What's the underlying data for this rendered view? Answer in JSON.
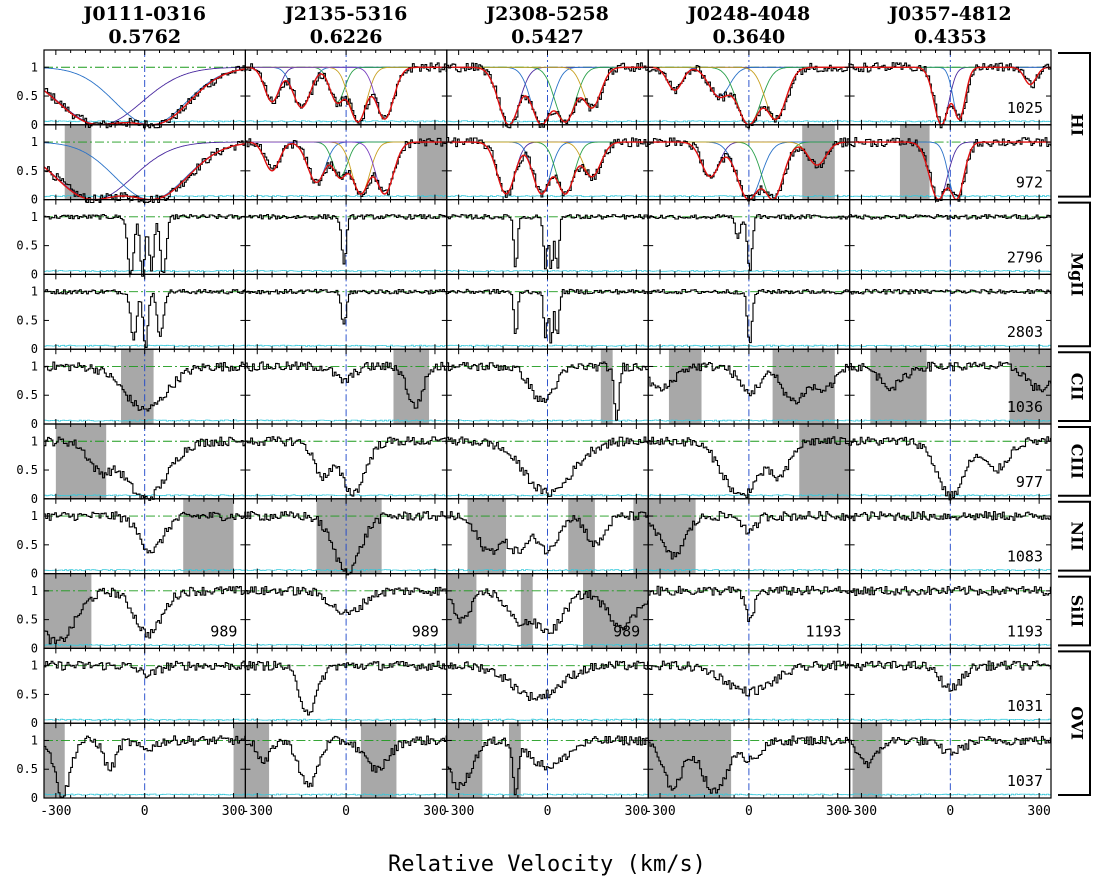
{
  "figure": {
    "xlabel": "Relative Velocity (km/s)"
  },
  "colors": {
    "data": "#000000",
    "error": "#33c8dc",
    "fit": "#e01010",
    "continuum": "#1a9a1a",
    "zero_line": "#e01010",
    "center_line": "#1a44c8",
    "mask": "#a8a8a8",
    "components": [
      "#4b2ba0",
      "#2a72c8",
      "#2aa04b",
      "#c8a020",
      "#7a40c0"
    ]
  },
  "chart_data": {
    "type": "line",
    "xlim": [
      -340,
      340
    ],
    "ylim": [
      0,
      1.3
    ],
    "xticks": [
      "-300",
      "0",
      "300"
    ],
    "yticks": [
      "0",
      "0.5",
      "1"
    ],
    "columns": [
      {
        "sightline": "J0111-0316",
        "redshift": "0.5762"
      },
      {
        "sightline": "J2135-5316",
        "redshift": "0.6226"
      },
      {
        "sightline": "J2308-5258",
        "redshift": "0.5427"
      },
      {
        "sightline": "J0248-4048",
        "redshift": "0.3640"
      },
      {
        "sightline": "J0357-4812",
        "redshift": "0.4353"
      }
    ],
    "ions": [
      {
        "ion": "HI",
        "rows": [
          0,
          1
        ]
      },
      {
        "ion": "MgII",
        "rows": [
          2,
          3
        ]
      },
      {
        "ion": "CII",
        "rows": [
          4
        ]
      },
      {
        "ion": "CIII",
        "rows": [
          5
        ]
      },
      {
        "ion": "NII",
        "rows": [
          6
        ]
      },
      {
        "ion": "SiII",
        "rows": [
          7
        ]
      },
      {
        "ion": "OVI",
        "rows": [
          8,
          9
        ]
      }
    ],
    "rows": [
      {
        "labels": [
          "",
          "",
          "",
          "",
          "1025"
        ]
      },
      {
        "labels": [
          "",
          "",
          "",
          "",
          "972"
        ]
      },
      {
        "labels": [
          "",
          "",
          "",
          "",
          "2796"
        ]
      },
      {
        "labels": [
          "",
          "",
          "",
          "",
          "2803"
        ]
      },
      {
        "labels": [
          "",
          "",
          "",
          "",
          "1036"
        ]
      },
      {
        "labels": [
          "",
          "",
          "",
          "",
          "977"
        ]
      },
      {
        "labels": [
          "",
          "",
          "",
          "",
          "1083"
        ]
      },
      {
        "labels": [
          "989",
          "989",
          "989",
          "1193",
          "1193"
        ]
      },
      {
        "labels": [
          "",
          "",
          "",
          "",
          "1031"
        ]
      },
      {
        "labels": [
          "",
          "",
          "",
          "",
          "1037"
        ]
      }
    ],
    "masks": [
      [
        [],
        [
          [
            -270,
            -180
          ]
        ],
        [],
        [],
        [
          [
            -80,
            30
          ]
        ],
        [
          [
            -300,
            -130
          ]
        ],
        [
          [
            130,
            300
          ]
        ],
        [
          [
            -340,
            -180
          ]
        ],
        [],
        [
          [
            -340,
            -270
          ],
          [
            300,
            340
          ]
        ]
      ],
      [
        [],
        [
          [
            240,
            340
          ]
        ],
        [],
        [],
        [
          [
            160,
            280
          ]
        ],
        [],
        [
          [
            -100,
            120
          ]
        ],
        [],
        [],
        [
          [
            -340,
            -260
          ],
          [
            50,
            170
          ]
        ]
      ],
      [
        [],
        [],
        [],
        [],
        [
          [
            180,
            220
          ]
        ],
        [],
        [
          [
            -270,
            -140
          ],
          [
            70,
            160
          ],
          [
            290,
            340
          ]
        ],
        [
          [
            -340,
            -240
          ],
          [
            -90,
            -50
          ],
          [
            120,
            340
          ]
        ],
        [],
        [
          [
            -340,
            -220
          ],
          [
            -130,
            -90
          ]
        ]
      ],
      [
        [],
        [
          [
            180,
            290
          ]
        ],
        [],
        [],
        [
          [
            -270,
            -160
          ],
          [
            80,
            290
          ]
        ],
        [
          [
            170,
            340
          ]
        ],
        [
          [
            -340,
            -180
          ]
        ],
        [],
        [],
        [
          [
            -340,
            -60
          ]
        ]
      ],
      [
        [],
        [
          [
            -170,
            -70
          ]
        ],
        [],
        [],
        [
          [
            -270,
            -80
          ],
          [
            200,
            340
          ]
        ],
        [],
        [],
        [],
        [],
        [
          [
            -330,
            -230
          ]
        ]
      ]
    ],
    "fitted_rows": [
      0,
      1
    ],
    "absorption": [
      [
        [
          {
            "v": -150,
            "d": 1.0,
            "w": 140
          },
          {
            "v": 20,
            "d": 1.0,
            "w": 120
          }
        ],
        [
          {
            "v": -170,
            "d": 1.0,
            "w": 130
          },
          {
            "v": 20,
            "d": 1.0,
            "w": 120
          }
        ],
        [
          {
            "v": -50,
            "d": 1.0,
            "w": 10
          },
          {
            "v": -10,
            "d": 1.0,
            "w": 8
          },
          {
            "v": 20,
            "d": 0.9,
            "w": 8
          },
          {
            "v": 60,
            "d": 1.0,
            "w": 10
          }
        ],
        [
          {
            "v": -40,
            "d": 0.8,
            "w": 10
          },
          {
            "v": 0,
            "d": 1.0,
            "w": 8
          },
          {
            "v": 50,
            "d": 0.8,
            "w": 10
          }
        ],
        [
          {
            "v": 0,
            "d": 0.75,
            "w": 70
          }
        ],
        [
          {
            "v": -150,
            "d": 0.5,
            "w": 40
          },
          {
            "v": 0,
            "d": 1.0,
            "w": 70
          }
        ],
        [
          {
            "v": 20,
            "d": 0.6,
            "w": 40
          }
        ],
        [
          {
            "v": -300,
            "d": 0.9,
            "w": 60
          },
          {
            "v": 10,
            "d": 0.75,
            "w": 45
          }
        ],
        [
          {
            "v": 10,
            "d": 0.15,
            "w": 30
          }
        ],
        [
          {
            "v": -280,
            "d": 0.95,
            "w": 25
          },
          {
            "v": -120,
            "d": 0.5,
            "w": 20
          },
          {
            "v": 0,
            "d": 0.15,
            "w": 30
          }
        ]
      ],
      [
        [
          {
            "v": -250,
            "d": 0.6,
            "w": 25
          },
          {
            "v": -150,
            "d": 0.7,
            "w": 30
          },
          {
            "v": -30,
            "d": 0.6,
            "w": 25
          },
          {
            "v": 40,
            "d": 0.95,
            "w": 30
          },
          {
            "v": 130,
            "d": 0.9,
            "w": 30
          }
        ],
        [
          {
            "v": -250,
            "d": 0.5,
            "w": 25
          },
          {
            "v": -100,
            "d": 0.7,
            "w": 30
          },
          {
            "v": -20,
            "d": 0.6,
            "w": 25
          },
          {
            "v": 50,
            "d": 0.9,
            "w": 30
          },
          {
            "v": 130,
            "d": 0.9,
            "w": 30
          }
        ],
        [
          {
            "v": -10,
            "d": 0.8,
            "w": 8
          }
        ],
        [
          {
            "v": -10,
            "d": 0.6,
            "w": 8
          }
        ],
        [
          {
            "v": -10,
            "d": 0.25,
            "w": 30
          },
          {
            "v": 230,
            "d": 0.7,
            "w": 25
          }
        ],
        [
          {
            "v": -80,
            "d": 0.6,
            "w": 30
          },
          {
            "v": 20,
            "d": 0.9,
            "w": 40
          }
        ],
        [
          {
            "v": 0,
            "d": 0.95,
            "w": 45
          }
        ],
        [
          {
            "v": 0,
            "d": 0.4,
            "w": 50
          }
        ],
        [
          {
            "v": -130,
            "d": 0.8,
            "w": 30
          }
        ],
        [
          {
            "v": -130,
            "d": 0.8,
            "w": 30
          },
          {
            "v": -280,
            "d": 0.4,
            "w": 20
          },
          {
            "v": 100,
            "d": 0.5,
            "w": 40
          }
        ]
      ],
      [
        [
          {
            "v": -130,
            "d": 1.0,
            "w": 35
          },
          {
            "v": -20,
            "d": 1.0,
            "w": 35
          },
          {
            "v": 60,
            "d": 0.95,
            "w": 35
          },
          {
            "v": 150,
            "d": 0.7,
            "w": 30
          }
        ],
        [
          {
            "v": -140,
            "d": 0.9,
            "w": 30
          },
          {
            "v": -20,
            "d": 0.9,
            "w": 30
          },
          {
            "v": 60,
            "d": 0.9,
            "w": 30
          },
          {
            "v": 150,
            "d": 0.6,
            "w": 30
          }
        ],
        [
          {
            "v": -110,
            "d": 0.9,
            "w": 6
          },
          {
            "v": -10,
            "d": 0.9,
            "w": 6
          },
          {
            "v": 10,
            "d": 0.95,
            "w": 6
          },
          {
            "v": 30,
            "d": 0.9,
            "w": 6
          }
        ],
        [
          {
            "v": -110,
            "d": 0.8,
            "w": 6
          },
          {
            "v": -10,
            "d": 0.8,
            "w": 6
          },
          {
            "v": 10,
            "d": 0.9,
            "w": 6
          },
          {
            "v": 30,
            "d": 0.8,
            "w": 6
          }
        ],
        [
          {
            "v": -20,
            "d": 0.6,
            "w": 40
          },
          {
            "v": 230,
            "d": 0.95,
            "w": 8
          }
        ],
        [
          {
            "v": 0,
            "d": 0.9,
            "w": 80
          }
        ],
        [
          {
            "v": -200,
            "d": 0.6,
            "w": 40
          },
          {
            "v": -100,
            "d": 0.6,
            "w": 40
          },
          {
            "v": 0,
            "d": 0.6,
            "w": 30
          },
          {
            "v": 160,
            "d": 0.5,
            "w": 30
          }
        ],
        [
          {
            "v": -290,
            "d": 0.5,
            "w": 30
          },
          {
            "v": -100,
            "d": 0.5,
            "w": 40
          },
          {
            "v": 0,
            "d": 0.7,
            "w": 50
          },
          {
            "v": 250,
            "d": 0.6,
            "w": 50
          }
        ],
        [
          {
            "v": -40,
            "d": 0.55,
            "w": 80
          }
        ],
        [
          {
            "v": -300,
            "d": 0.8,
            "w": 40
          },
          {
            "v": -110,
            "d": 0.9,
            "w": 8
          },
          {
            "v": 0,
            "d": 0.45,
            "w": 60
          }
        ]
      ],
      [
        [
          {
            "v": -250,
            "d": 0.4,
            "w": 25
          },
          {
            "v": -100,
            "d": 0.5,
            "w": 35
          },
          {
            "v": 0,
            "d": 1.0,
            "w": 40
          },
          {
            "v": 90,
            "d": 0.9,
            "w": 35
          }
        ],
        [
          {
            "v": -130,
            "d": 0.6,
            "w": 30
          },
          {
            "v": 0,
            "d": 1.0,
            "w": 40
          },
          {
            "v": 80,
            "d": 1.0,
            "w": 35
          },
          {
            "v": 230,
            "d": 0.4,
            "w": 30
          }
        ],
        [
          {
            "v": -40,
            "d": 0.4,
            "w": 8
          },
          {
            "v": 0,
            "d": 0.95,
            "w": 8
          }
        ],
        [
          {
            "v": 0,
            "d": 0.9,
            "w": 8
          }
        ],
        [
          {
            "v": -300,
            "d": 0.4,
            "w": 40
          },
          {
            "v": 0,
            "d": 0.45,
            "w": 35
          },
          {
            "v": 150,
            "d": 0.6,
            "w": 40
          },
          {
            "v": 250,
            "d": 0.4,
            "w": 35
          }
        ],
        [
          {
            "v": -30,
            "d": 0.95,
            "w": 60
          },
          {
            "v": 100,
            "d": 0.6,
            "w": 35
          }
        ],
        [
          {
            "v": -260,
            "d": 0.7,
            "w": 40
          },
          {
            "v": 0,
            "d": 0.3,
            "w": 20
          }
        ],
        [
          {
            "v": 0,
            "d": 0.5,
            "w": 15
          }
        ],
        [
          {
            "v": 0,
            "d": 0.45,
            "w": 80
          }
        ],
        [
          {
            "v": -260,
            "d": 0.8,
            "w": 35
          },
          {
            "v": -120,
            "d": 0.9,
            "w": 40
          },
          {
            "v": 0,
            "d": 0.3,
            "w": 40
          }
        ]
      ],
      [
        [
          {
            "v": -30,
            "d": 1.0,
            "w": 25
          },
          {
            "v": 30,
            "d": 0.9,
            "w": 20
          },
          {
            "v": 270,
            "d": 0.3,
            "w": 20
          }
        ],
        [
          {
            "v": -40,
            "d": 1.0,
            "w": 30
          },
          {
            "v": 20,
            "d": 1.0,
            "w": 25
          }
        ],
        [],
        [],
        [
          {
            "v": -200,
            "d": 0.35,
            "w": 40
          },
          {
            "v": 300,
            "d": 0.4,
            "w": 40
          }
        ],
        [
          {
            "v": 0,
            "d": 0.95,
            "w": 45
          },
          {
            "v": 150,
            "d": 0.5,
            "w": 40
          }
        ],
        [],
        [],
        [
          {
            "v": 0,
            "d": 0.4,
            "w": 35
          }
        ],
        [
          {
            "v": 0,
            "d": 0.2,
            "w": 40
          },
          {
            "v": -280,
            "d": 0.4,
            "w": 30
          }
        ]
      ]
    ]
  }
}
